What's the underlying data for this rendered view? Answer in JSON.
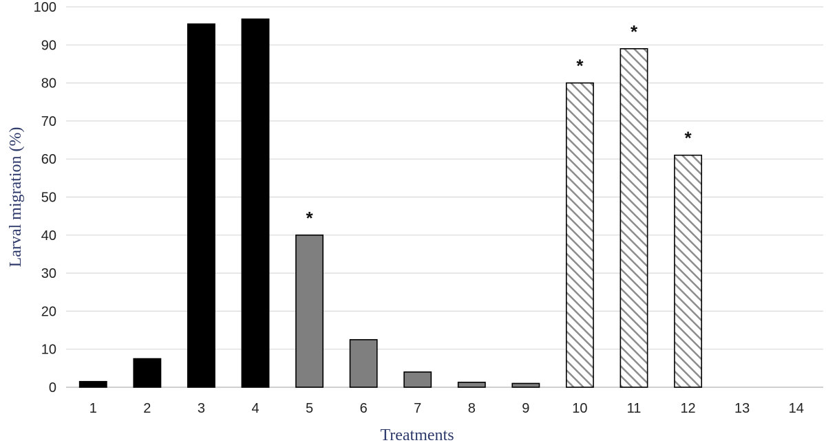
{
  "chart_data": {
    "type": "bar",
    "categories": [
      "1",
      "2",
      "3",
      "4",
      "5",
      "6",
      "7",
      "8",
      "9",
      "10",
      "11",
      "12",
      "13",
      "14"
    ],
    "values": [
      1.5,
      7.5,
      95.5,
      96.8,
      40,
      12.5,
      4,
      1.3,
      1,
      80,
      89,
      61,
      0,
      0
    ],
    "fills": [
      "solid-black",
      "solid-black",
      "solid-black",
      "solid-black",
      "solid-gray",
      "solid-gray",
      "solid-gray",
      "solid-gray",
      "solid-gray",
      "hatched",
      "hatched",
      "hatched",
      "none",
      "none"
    ],
    "significant": [
      false,
      false,
      false,
      false,
      true,
      false,
      false,
      false,
      false,
      true,
      true,
      true,
      false,
      false
    ],
    "significance_marker": "*",
    "xlabel": "Treatments",
    "ylabel": "Larval migration (%)",
    "ylim": [
      0,
      100
    ],
    "yticks": [
      0,
      10,
      20,
      30,
      40,
      50,
      60,
      70,
      80,
      90,
      100
    ],
    "grid": true,
    "colors": {
      "black": "#000000",
      "gray": "#7f7f7f",
      "hatch": "#8c8c8c",
      "grid": "#d9d9d9",
      "axis_title": "#2e3a6b"
    }
  }
}
